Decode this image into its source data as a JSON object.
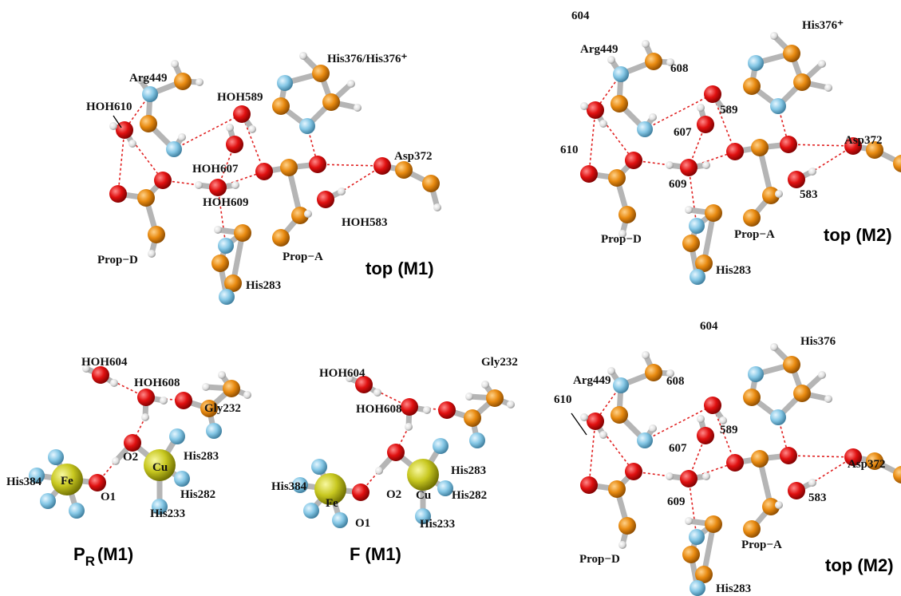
{
  "panels": [
    {
      "labels": [
        "Arg449",
        "HOH610",
        "HOH589",
        "His376/His376⁺",
        "HOH607",
        "HOH609",
        "Asp372",
        "HOH583",
        "Prop−D",
        "Prop−A",
        "His283"
      ],
      "caption": "top (M1)"
    },
    {
      "labels": [
        "604",
        "His376⁺",
        "Arg449",
        "608",
        "589",
        "607",
        "610",
        "609",
        "Asp372",
        "583",
        "Prop−D",
        "Prop−A",
        "His283"
      ],
      "caption": "top (M2)"
    },
    {
      "labels": [
        "HOH604",
        "HOH608",
        "Gly232",
        "His384",
        "Fe",
        "O1",
        "O2",
        "Cu",
        "His283",
        "His282",
        "His233"
      ],
      "caption": {
        "main": "P",
        "sub": "R",
        "rest": "(M1)"
      }
    },
    {
      "labels": [
        "HOH604",
        "Gly232",
        "HOH608",
        "His384",
        "Fe",
        "O1",
        "O2",
        "Cu",
        "His283",
        "His282",
        "His233"
      ],
      "caption": "F  (M1)"
    },
    {
      "labels": [
        "604",
        "His376",
        "Arg449",
        "608",
        "610",
        "589",
        "607",
        "Asp372",
        "609",
        "583",
        "Prop−A",
        "Prop−D",
        "His283"
      ],
      "caption": "top (M2)"
    }
  ]
}
